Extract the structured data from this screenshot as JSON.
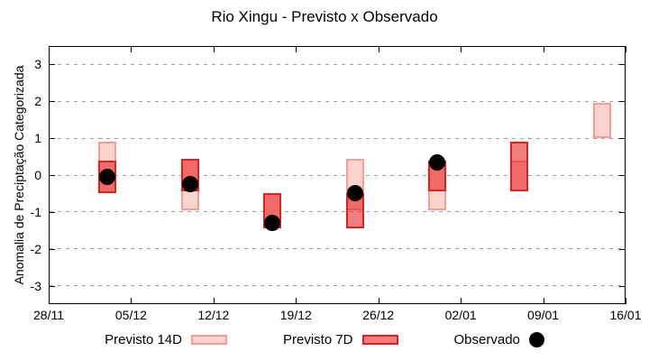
{
  "chart_data": {
    "type": "bar",
    "title": "Rio Xingu - Previsto x Observado",
    "ylabel": "Anomalia de Preciptação Categorizada",
    "ylim": [
      -3.5,
      3.5
    ],
    "yticks": [
      3,
      2,
      1,
      0,
      -1,
      -2,
      -3
    ],
    "xlim_days": [
      0,
      49
    ],
    "xticks": [
      {
        "label": "28/11",
        "day": 0
      },
      {
        "label": "05/12",
        "day": 7
      },
      {
        "label": "12/12",
        "day": 14
      },
      {
        "label": "19/12",
        "day": 21
      },
      {
        "label": "26/12",
        "day": 28
      },
      {
        "label": "02/01",
        "day": 35
      },
      {
        "label": "09/01",
        "day": 42
      },
      {
        "label": "16/01",
        "day": 49
      }
    ],
    "grid": "dotted horizontal lines at integer anomaly values",
    "legend_position": "bottom-center",
    "series": [
      {
        "name": "Previsto 14D",
        "type": "range-bar",
        "fill": "#fcd4cf",
        "border": "#f59e96",
        "ranges": [
          {
            "date": "03/12",
            "day": 5,
            "low": -0.5,
            "high": 0.9
          },
          {
            "date": "10/12",
            "day": 12,
            "low": -0.95,
            "high": 0.45
          },
          {
            "date": "17/12",
            "day": 19,
            "low": -1.45,
            "high": -0.5
          },
          {
            "date": "24/12",
            "day": 26,
            "low": -0.95,
            "high": 0.45
          },
          {
            "date": "31/12",
            "day": 33,
            "low": -0.95,
            "high": 0.4
          },
          {
            "date": "07/01",
            "day": 40,
            "low": -0.45,
            "high": 0.4
          },
          {
            "date": "14/01",
            "day": 47,
            "low": 1.0,
            "high": 1.95
          }
        ]
      },
      {
        "name": "Previsto 7D",
        "type": "range-bar",
        "fill": "rgba(230,20,20,0.55)",
        "border": "#e02020",
        "ranges": [
          {
            "date": "03/12",
            "day": 5,
            "low": -0.5,
            "high": 0.4
          },
          {
            "date": "10/12",
            "day": 12,
            "low": -0.45,
            "high": 0.45
          },
          {
            "date": "17/12",
            "day": 19,
            "low": -1.45,
            "high": -0.5
          },
          {
            "date": "24/12",
            "day": 26,
            "low": -1.45,
            "high": -0.5
          },
          {
            "date": "31/12",
            "day": 33,
            "low": -0.45,
            "high": 0.4
          },
          {
            "date": "07/01",
            "day": 40,
            "low": -0.45,
            "high": 0.9
          }
        ]
      },
      {
        "name": "Observado",
        "type": "scatter",
        "color": "#000000",
        "points": [
          {
            "date": "03/12",
            "day": 5,
            "value": -0.05
          },
          {
            "date": "10/12",
            "day": 12,
            "value": -0.25
          },
          {
            "date": "17/12",
            "day": 19,
            "value": -1.3
          },
          {
            "date": "24/12",
            "day": 26,
            "value": -0.5
          },
          {
            "date": "31/12",
            "day": 33,
            "value": 0.35
          }
        ]
      }
    ],
    "legend": [
      {
        "label": "Previsto 14D",
        "swatch": "box",
        "fill": "#fcd4cf",
        "border": "#f59e96"
      },
      {
        "label": "Previsto 7D",
        "swatch": "box",
        "fill": "#f57d7c",
        "border": "#e02020"
      },
      {
        "label": "Observado",
        "swatch": "dot",
        "fill": "#000000"
      }
    ]
  }
}
